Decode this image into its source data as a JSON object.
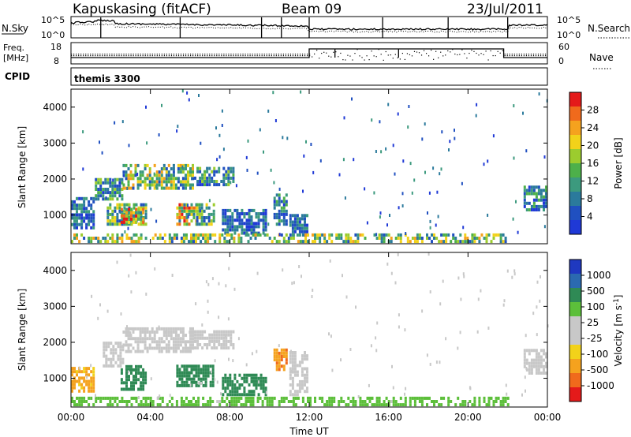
{
  "header": {
    "title": "Kapuskasing (fitACF)",
    "beam": "Beam 09",
    "date": "23/Jul/2011"
  },
  "strip_labels": {
    "nsky": "N.Sky",
    "nsky_ticks": [
      "10^5",
      "10^0"
    ],
    "nsearch": "N.Search",
    "nsearch_ticks": [
      "10^5",
      "10^0"
    ],
    "freq_line1": "Freq.",
    "freq_line2": "[MHz]",
    "freq_ticks": [
      "18",
      "8"
    ],
    "nave": "Nave",
    "nave_ticks": [
      "60",
      "0"
    ],
    "cpid_label": "CPID",
    "cpid_value": "themis 3300"
  },
  "colors": {
    "power": [
      "#1f39d6",
      "#2050c0",
      "#2b7a9c",
      "#3c9a7e",
      "#4db04a",
      "#9ccc2e",
      "#f2d21a",
      "#f5a21e",
      "#f06a1c",
      "#e41a1a"
    ],
    "velocity": [
      "#e41a1a",
      "#f06a1c",
      "#f5a21e",
      "#f2d21a",
      "#c8c8c8",
      "#c8c8c8",
      "#5cbf3a",
      "#2f8a55",
      "#2b6ab0",
      "#1f39c0"
    ]
  },
  "chart_data": [
    {
      "type": "heatmap",
      "name": "power-panel",
      "ylabel": "Slant Range [km]",
      "yticks": [
        "1000",
        "2000",
        "3000",
        "4000"
      ],
      "ylim": [
        200,
        4500
      ],
      "xlim": [
        0,
        24
      ],
      "colorbar_label": "Power [dB]",
      "colorbar_ticks": [
        "4",
        "8",
        "12",
        "16",
        "20",
        "24",
        "28"
      ],
      "colorbar_range": [
        0,
        30
      ],
      "regions": [
        {
          "t": [
            0.0,
            1.2
          ],
          "r": [
            600,
            1500
          ],
          "value": 6
        },
        {
          "t": [
            1.2,
            2.6
          ],
          "r": [
            1400,
            2000
          ],
          "value": 10
        },
        {
          "t": [
            2.6,
            6.2
          ],
          "r": [
            1700,
            2400
          ],
          "value": 14
        },
        {
          "t": [
            6.2,
            8.2
          ],
          "r": [
            1800,
            2300
          ],
          "value": 10
        },
        {
          "t": [
            1.8,
            3.8
          ],
          "r": [
            700,
            1300
          ],
          "value": 12
        },
        {
          "t": [
            2.5,
            3.6
          ],
          "r": [
            750,
            1150
          ],
          "value": 20
        },
        {
          "t": [
            5.3,
            6.3
          ],
          "r": [
            700,
            1300
          ],
          "value": 18
        },
        {
          "t": [
            6.3,
            7.2
          ],
          "r": [
            700,
            1300
          ],
          "value": 12
        },
        {
          "t": [
            7.6,
            9.8
          ],
          "r": [
            450,
            1100
          ],
          "value": 6
        },
        {
          "t": [
            10.2,
            10.8
          ],
          "r": [
            700,
            1600
          ],
          "value": 8
        },
        {
          "t": [
            11.0,
            11.9
          ],
          "r": [
            400,
            950
          ],
          "value": 6
        },
        {
          "t": [
            22.8,
            24.0
          ],
          "r": [
            1100,
            1800
          ],
          "value": 8
        },
        {
          "t": [
            0.0,
            22.0
          ],
          "r": [
            220,
            420
          ],
          "value": 14
        }
      ]
    },
    {
      "type": "heatmap",
      "name": "velocity-panel",
      "ylabel": "Slant Range [km]",
      "yticks": [
        "1000",
        "2000",
        "3000",
        "4000"
      ],
      "ylim": [
        200,
        4500
      ],
      "xlim": [
        0,
        24
      ],
      "xlabel": "Time UT",
      "xticks": [
        "00:00",
        "04:00",
        "08:00",
        "12:00",
        "16:00",
        "20:00",
        "00:00"
      ],
      "colorbar_label": "Velocity [m s^-1]",
      "colorbar_ticks": [
        "-1000",
        "-500",
        "-100",
        "-25",
        "25",
        "100",
        "500",
        "1000"
      ],
      "regions": [
        {
          "t": [
            0.0,
            1.2
          ],
          "r": [
            600,
            1300
          ],
          "value": -150
        },
        {
          "t": [
            1.6,
            2.6
          ],
          "r": [
            1300,
            2000
          ],
          "value": 0
        },
        {
          "t": [
            2.6,
            6.2
          ],
          "r": [
            1700,
            2400
          ],
          "value": 0
        },
        {
          "t": [
            6.2,
            8.2
          ],
          "r": [
            1800,
            2300
          ],
          "value": 0
        },
        {
          "t": [
            2.5,
            3.8
          ],
          "r": [
            650,
            1300
          ],
          "value": 300
        },
        {
          "t": [
            5.3,
            7.2
          ],
          "r": [
            750,
            1350
          ],
          "value": 300
        },
        {
          "t": [
            7.6,
            9.8
          ],
          "r": [
            500,
            1100
          ],
          "value": 200
        },
        {
          "t": [
            10.2,
            10.8
          ],
          "r": [
            1200,
            1800
          ],
          "value": -400
        },
        {
          "t": [
            11.0,
            11.9
          ],
          "r": [
            500,
            1700
          ],
          "value": 0
        },
        {
          "t": [
            22.8,
            24.0
          ],
          "r": [
            1100,
            1800
          ],
          "value": 0
        },
        {
          "t": [
            0.0,
            22.0
          ],
          "r": [
            220,
            420
          ],
          "value": 50
        }
      ]
    }
  ]
}
